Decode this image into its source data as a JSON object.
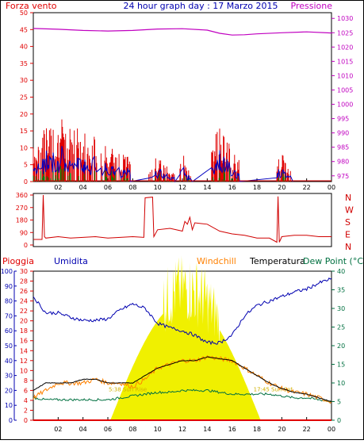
{
  "header": {
    "left": "Forza vento",
    "title": "24 hour graph day : 17 Marzo 2015",
    "right": "Pressione"
  },
  "colors": {
    "wind": "#e00000",
    "wind_avg": "#0000c0",
    "wind_other": "#008000",
    "pressure": "#c000c0",
    "direction": "#d00000",
    "rain": "#e00000",
    "humidity": "#0000b0",
    "windchill": "#ff8000",
    "temperature": "#000000",
    "dewpoint": "#007040",
    "solar": "#f0f000",
    "left_axis": "#e00000",
    "hum_axis": "#0000b0",
    "right_axis_bottom": "#007040"
  },
  "chart_data": [
    {
      "type": "line",
      "title": "24 hour graph day : 17 Marzo 2015",
      "left_label": "Forza vento",
      "right_label": "Pressione",
      "x_ticks": [
        "02",
        "04",
        "06",
        "08",
        "10",
        "12",
        "14",
        "16",
        "18",
        "20",
        "22",
        "00"
      ],
      "y_left_ticks": [
        0,
        5,
        10,
        15,
        20,
        25,
        30,
        35,
        40,
        45,
        50
      ],
      "y_right_ticks": [
        975,
        980,
        985,
        990,
        995,
        1000,
        1005,
        1010,
        1015,
        1020,
        1025,
        1030
      ],
      "ylim_left": [
        0,
        50
      ],
      "ylim_right": [
        973,
        1032
      ],
      "pressure": {
        "x": [
          0,
          2,
          4,
          6,
          8,
          10,
          12,
          14,
          15,
          16,
          17,
          18,
          20,
          22,
          24
        ],
        "y": [
          1026.5,
          1026.2,
          1025.8,
          1025.6,
          1025.8,
          1026.3,
          1026.4,
          1025.9,
          1024.8,
          1024.2,
          1024.3,
          1024.6,
          1025.0,
          1025.3,
          1024.9
        ]
      },
      "wind_segments": [
        [
          0,
          7.8,
          18
        ],
        [
          9.3,
          11.4,
          7
        ],
        [
          11.8,
          12.4,
          11
        ],
        [
          12.4,
          12.8,
          4
        ],
        [
          14.3,
          16.6,
          16
        ],
        [
          19.6,
          20.9,
          8
        ]
      ]
    },
    {
      "type": "line",
      "y_left_ticks": [
        0,
        90,
        180,
        270,
        360
      ],
      "right_labels": [
        "N",
        "W",
        "S",
        "E",
        "N"
      ],
      "ylim": [
        0,
        360
      ],
      "direction": {
        "x": [
          0,
          0.7,
          0.8,
          0.9,
          1,
          2,
          3,
          4,
          5,
          6,
          7,
          8,
          8.9,
          9,
          9.6,
          9.7,
          10,
          11,
          12,
          12.2,
          12.4,
          12.6,
          12.8,
          13,
          14,
          15,
          16,
          17,
          18,
          19,
          19.6,
          19.7,
          19.8,
          19.9,
          20,
          21,
          22,
          23,
          24
        ],
        "y": [
          40,
          40,
          360,
          60,
          50,
          60,
          50,
          55,
          60,
          50,
          55,
          60,
          55,
          340,
          345,
          60,
          110,
          120,
          100,
          170,
          150,
          200,
          110,
          160,
          150,
          100,
          80,
          70,
          50,
          50,
          20,
          350,
          20,
          40,
          60,
          70,
          70,
          60,
          60
        ]
      }
    },
    {
      "type": "line",
      "series_labels": [
        "Pioggia",
        "Umidita",
        "Windchill",
        "Temperatura",
        "Dew Point (°C"
      ],
      "rain_ticks": [
        0,
        2,
        4,
        6,
        8,
        10,
        12,
        14,
        16,
        18,
        20,
        22,
        24,
        26,
        28,
        30
      ],
      "hum_ticks": [
        0,
        10,
        20,
        30,
        40,
        50,
        60,
        70,
        80,
        90,
        100
      ],
      "temp_ticks": [
        0,
        5,
        10,
        15,
        20,
        25,
        30,
        35,
        40
      ],
      "ylim_rain": [
        0,
        30
      ],
      "ylim_hum": [
        0,
        100
      ],
      "ylim_temp": [
        0,
        40
      ],
      "annotations": [
        "5:38 Sun Rise",
        "17:45 Sun Set"
      ],
      "humidity": {
        "x": [
          0,
          1,
          2,
          3,
          4,
          5,
          6,
          7,
          8,
          9,
          10,
          11,
          12,
          13,
          14,
          15,
          16,
          17,
          18,
          19,
          20,
          21,
          22,
          23,
          24
        ],
        "y": [
          83,
          72,
          72,
          69,
          67,
          67,
          68,
          74,
          78,
          75,
          65,
          62,
          60,
          57,
          52,
          52,
          57,
          70,
          77,
          80,
          83,
          86,
          88,
          92,
          95
        ]
      },
      "temperature": {
        "x": [
          0,
          1,
          2,
          3,
          4,
          5,
          6,
          7,
          8,
          9,
          10,
          11,
          12,
          13,
          14,
          15,
          16,
          17,
          18,
          19,
          20,
          21,
          22,
          23,
          24
        ],
        "y": [
          8,
          10,
          10,
          10,
          11,
          11,
          10,
          10,
          10,
          12,
          14,
          15,
          16,
          16,
          17,
          16.5,
          16,
          14,
          12,
          10,
          8.5,
          7.5,
          7,
          6,
          5
        ]
      },
      "windchill": {
        "x": [
          0,
          1,
          2,
          3,
          4,
          5,
          6,
          7,
          8,
          9,
          10,
          11,
          12,
          13,
          14,
          15,
          16,
          17,
          18,
          19,
          20,
          21,
          22,
          23,
          24
        ],
        "y": [
          6,
          8,
          10,
          10,
          10,
          11,
          10,
          10,
          9,
          11,
          14,
          15,
          16,
          16,
          17,
          16.5,
          16,
          14,
          12,
          10,
          8.5,
          7.5,
          7,
          6,
          5
        ]
      },
      "dewpoint": {
        "x": [
          0,
          1,
          2,
          3,
          4,
          5,
          6,
          7,
          8,
          9,
          10,
          11,
          12,
          13,
          14,
          15,
          16,
          17,
          18,
          19,
          20,
          21,
          22,
          23,
          24
        ],
        "y": [
          6,
          5.5,
          5.5,
          5.5,
          5.5,
          5.5,
          5.5,
          6,
          6.5,
          7,
          7.5,
          7.5,
          8,
          8,
          8,
          7.5,
          7,
          7,
          7,
          7,
          6.5,
          6,
          6,
          5.5,
          5
        ]
      },
      "solar_window": [
        6.2,
        18.3
      ],
      "rain_total": 0
    }
  ]
}
